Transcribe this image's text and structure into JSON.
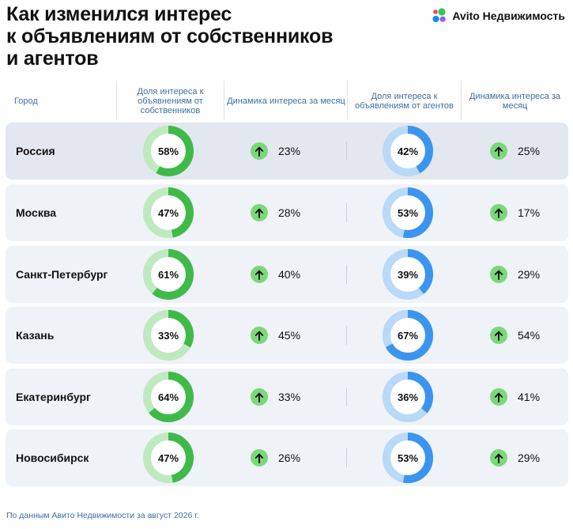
{
  "title_lines": [
    "Как изменился интерес",
    "к объявлениям от собственников",
    "и агентов"
  ],
  "logo": {
    "text": "Avito Недвижимость",
    "dot_colors": [
      "#31c754",
      "#0a8ff2",
      "#965eeb",
      "#ff4053"
    ]
  },
  "headers": {
    "city": "Город",
    "owners_share": "Доля интереса к объявнениям от собственников",
    "owners_dynamic": "Динамика интереса за месяц",
    "agents_share": "Доля интереса к объявлениям от агентов",
    "agents_dynamic": "Динамика интереса за месяц"
  },
  "colors": {
    "owners_fill": "#3fba49",
    "owners_track": "#bfeac0",
    "agents_fill": "#3b95ee",
    "agents_track": "#b8d9f8",
    "arrow": "#7bd87a"
  },
  "chart_data": {
    "type": "table",
    "columns": [
      "Город",
      "Доля интереса к объявнениям от собственников",
      "Динамика интереса за месяц",
      "Доля интереса к объявлениям от агентов",
      "Динамика интереса за месяц"
    ],
    "rows": [
      {
        "city": "Россия",
        "owners_share": 58,
        "owners_share_label": "58%",
        "owners_dynamic": "23%",
        "agents_share": 42,
        "agents_share_label": "42%",
        "agents_dynamic": "25%"
      },
      {
        "city": "Москва",
        "owners_share": 47,
        "owners_share_label": "47%",
        "owners_dynamic": "28%",
        "agents_share": 53,
        "agents_share_label": "53%",
        "agents_dynamic": "17%"
      },
      {
        "city": "Санкт-Петербург",
        "owners_share": 61,
        "owners_share_label": "61%",
        "owners_dynamic": "40%",
        "agents_share": 39,
        "agents_share_label": "39%",
        "agents_dynamic": "29%"
      },
      {
        "city": "Казань",
        "owners_share": 33,
        "owners_share_label": "33%",
        "owners_dynamic": "45%",
        "agents_share": 67,
        "agents_share_label": "67%",
        "agents_dynamic": "54%"
      },
      {
        "city": "Екатеринбург",
        "owners_share": 64,
        "owners_share_label": "64%",
        "owners_dynamic": "33%",
        "agents_share": 36,
        "agents_share_label": "36%",
        "agents_dynamic": "41%"
      },
      {
        "city": "Новосибирск",
        "owners_share": 47,
        "owners_share_label": "47%",
        "owners_dynamic": "26%",
        "agents_share": 53,
        "agents_share_label": "53%",
        "agents_dynamic": "29%"
      }
    ]
  },
  "footer": "По данным Авито Недвижимости за август 2026 г."
}
